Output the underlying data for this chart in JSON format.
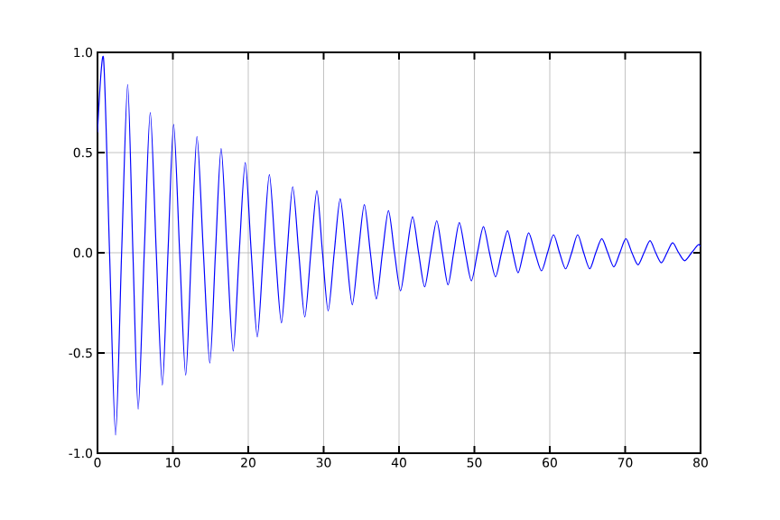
{
  "chart_data": {
    "type": "line",
    "color": "#0000ff",
    "grid": true,
    "x": [
      0,
      0.8,
      1.6,
      2.4,
      3.2,
      4.0,
      4.7,
      5.4,
      6.2,
      7.0,
      7.8,
      8.6,
      9.35,
      10.1,
      10.9,
      11.7,
      12.45,
      13.2,
      14.05,
      14.9,
      15.65,
      16.4,
      17.2,
      18.0,
      18.8,
      19.6,
      20.4,
      21.2,
      22.0,
      22.8,
      23.6,
      24.4,
      25.15,
      25.9,
      26.7,
      27.5,
      28.3,
      29.1,
      29.85,
      30.6,
      31.4,
      32.2,
      33.0,
      33.8,
      34.6,
      35.4,
      36.2,
      37.0,
      37.8,
      38.6,
      39.4,
      40.2,
      41.0,
      41.8,
      42.6,
      43.4,
      44.2,
      45.0,
      45.75,
      46.5,
      47.25,
      48.0,
      48.8,
      49.6,
      50.4,
      51.2,
      52.0,
      52.8,
      53.6,
      54.4,
      55.1,
      55.8,
      56.5,
      57.2,
      58.05,
      58.9,
      59.7,
      60.5,
      61.3,
      62.1,
      62.9,
      63.7,
      64.5,
      65.3,
      66.1,
      66.9,
      67.7,
      68.5,
      69.3,
      70.1,
      70.9,
      71.7,
      72.5,
      73.3,
      74.05,
      74.8,
      75.55,
      76.3,
      77.1,
      77.9,
      78.8,
      79.7,
      80
    ],
    "values": [
      0.6,
      0.97,
      0,
      -0.91,
      0,
      0.84,
      0,
      -0.78,
      0,
      0.7,
      0,
      -0.66,
      0,
      0.64,
      0,
      -0.61,
      0,
      0.58,
      0,
      -0.55,
      0,
      0.52,
      0,
      -0.49,
      0,
      0.45,
      0,
      -0.42,
      0,
      0.39,
      0,
      -0.35,
      0,
      0.33,
      0,
      -0.32,
      0,
      0.31,
      0,
      -0.29,
      0,
      0.27,
      0,
      -0.26,
      0,
      0.24,
      0,
      -0.23,
      0,
      0.21,
      0,
      -0.19,
      0,
      0.18,
      0,
      -0.17,
      0,
      0.16,
      0,
      -0.16,
      0,
      0.15,
      0,
      -0.14,
      0,
      0.13,
      0,
      -0.12,
      0,
      0.11,
      0,
      -0.1,
      0,
      0.1,
      0,
      -0.09,
      0,
      0.09,
      0,
      -0.08,
      0,
      0.09,
      0,
      -0.08,
      0,
      0.07,
      0,
      -0.07,
      0,
      0.07,
      0,
      -0.06,
      0,
      0.06,
      0,
      -0.05,
      0,
      0.05,
      0,
      -0.04,
      0,
      0.04,
      0.03
    ],
    "xlim": [
      0,
      80
    ],
    "ylim": [
      -1.0,
      1.0
    ],
    "xticks": [
      0,
      10,
      20,
      30,
      40,
      50,
      60,
      70,
      80
    ],
    "yticks": [
      {
        "value": -1.0,
        "label": "-1.0"
      },
      {
        "value": -0.5,
        "label": "-0.5"
      },
      {
        "value": 0,
        "label": "0.0"
      },
      {
        "value": 0.5,
        "label": "0.5"
      },
      {
        "value": 1.0,
        "label": "1.0"
      }
    ]
  }
}
